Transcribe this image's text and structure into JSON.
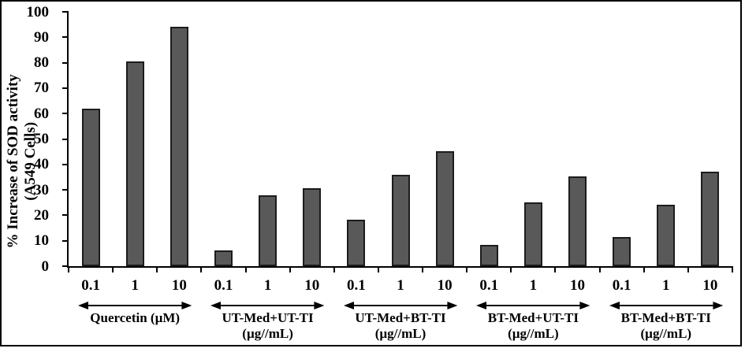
{
  "chart_data": {
    "type": "bar",
    "title": "",
    "ylabel_line1": "% Increase of SOD activity",
    "ylabel_line2": "(A549 Cells)",
    "xlabel": "",
    "ylim": [
      0,
      100
    ],
    "yticks": [
      0,
      10,
      20,
      30,
      40,
      50,
      60,
      70,
      80,
      90,
      100
    ],
    "grid": "off",
    "legend": "none",
    "categories": [
      "0.1",
      "1",
      "10"
    ],
    "groups": [
      {
        "label_line1": "Quercetin (µM)",
        "label_line2": "",
        "values": [
          62,
          80.5,
          94
        ]
      },
      {
        "label_line1": "UT-Med+UT-TI",
        "label_line2": "(µg//mL)",
        "values": [
          6.3,
          28,
          30.7
        ]
      },
      {
        "label_line1": "UT-Med+BT-TI",
        "label_line2": "(µg//mL)",
        "values": [
          18.3,
          36,
          45.3
        ]
      },
      {
        "label_line1": "BT-Med+UT-TI",
        "label_line2": "(µg//mL)",
        "values": [
          8.5,
          25,
          35.4
        ]
      },
      {
        "label_line1": "BT-Med+BT-TI",
        "label_line2": "(µg//mL)",
        "values": [
          11.6,
          24.2,
          37
        ]
      }
    ],
    "colors": {
      "bar_fill": "#595959",
      "bar_border": "#1c1c1c",
      "axis": "#000000",
      "text": "#000000",
      "background": "#ffffff"
    }
  }
}
